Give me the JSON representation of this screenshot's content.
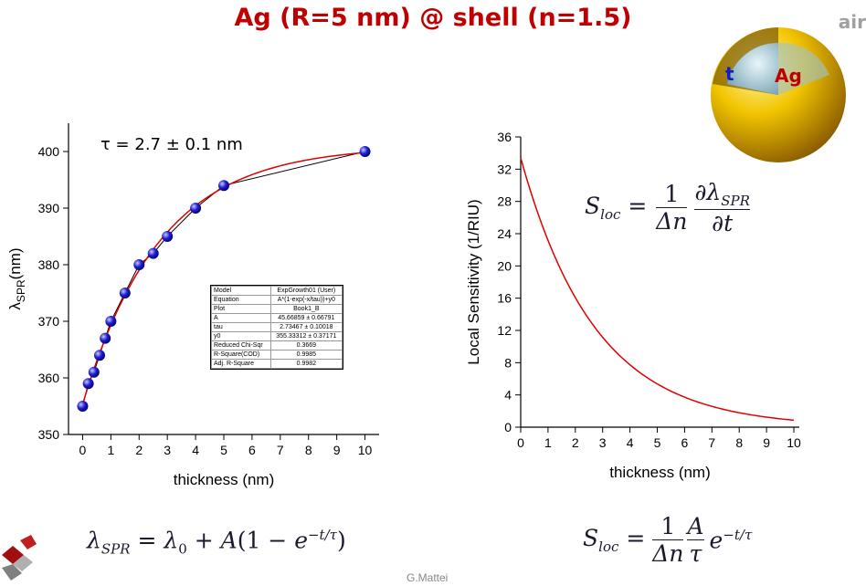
{
  "title": "Ag (R=5 nm) @ shell (n=1.5)",
  "air_label": "air",
  "sphere": {
    "shell_label": "t",
    "core_label": "Ag"
  },
  "tau_annotation": "τ = 2.7 ± 0.1 nm",
  "fit_table": [
    [
      "Model",
      "ExpGrowth01 (User)"
    ],
    [
      "Equation",
      "A*(1-exp(-x/tau))+y0"
    ],
    [
      "Plot",
      "Book1_B"
    ],
    [
      "A",
      "45.66859 ± 0.66791"
    ],
    [
      "tau",
      "2.73467 ± 0.10018"
    ],
    [
      "y0",
      "355.33312 ± 0.37171"
    ],
    [
      "Reduced Chi-Sqr",
      "0.3669"
    ],
    [
      "R-Square(COD)",
      "0.9985"
    ],
    [
      "Adj. R-Square",
      "0.9982"
    ]
  ],
  "formulas": {
    "lambda_spr": "λSPR = λ0 + A(1 − e−t/τ)",
    "s_loc_derivative": "Sloc = (1/Δn) ∂λSPR/∂t",
    "s_loc_exp": "Sloc = (1/Δn)(A/τ) e−t/τ"
  },
  "author": "G.Mattei",
  "colors": {
    "title": "#c00000",
    "fit": "#e00000",
    "marker": "#2020d0",
    "connect": "#000000"
  },
  "chart_data": [
    {
      "type": "scatter",
      "xlabel": "thickness (nm)",
      "ylabel": "λSPR(nm)",
      "xlim": [
        -0.5,
        10.5
      ],
      "ylim": [
        350,
        405
      ],
      "xticks": [
        0,
        1,
        2,
        3,
        4,
        5,
        6,
        7,
        8,
        9,
        10
      ],
      "yticks": [
        350,
        360,
        370,
        380,
        390,
        400
      ],
      "points": {
        "x": [
          0,
          0.2,
          0.4,
          0.6,
          0.8,
          1.0,
          1.5,
          2.0,
          2.5,
          3.0,
          4.0,
          5.0,
          10.0
        ],
        "y": [
          355,
          359,
          361,
          364,
          367,
          370,
          375,
          380,
          382,
          385,
          390,
          394,
          400
        ]
      },
      "fit": {
        "A": 45.66859,
        "tau": 2.73467,
        "y0": 355.33312
      }
    },
    {
      "type": "line",
      "xlabel": "thickness (nm)",
      "ylabel": "Local Sensitivity (1/RIU)",
      "xlim": [
        0,
        10.2
      ],
      "ylim": [
        0,
        36
      ],
      "xticks": [
        0,
        1,
        2,
        3,
        4,
        5,
        6,
        7,
        8,
        9,
        10
      ],
      "yticks": [
        0,
        4,
        8,
        12,
        16,
        20,
        24,
        28,
        32,
        36
      ],
      "curve": {
        "A": 45.66859,
        "tau": 2.73467,
        "delta_n": 0.5,
        "x_max": 10
      }
    }
  ]
}
